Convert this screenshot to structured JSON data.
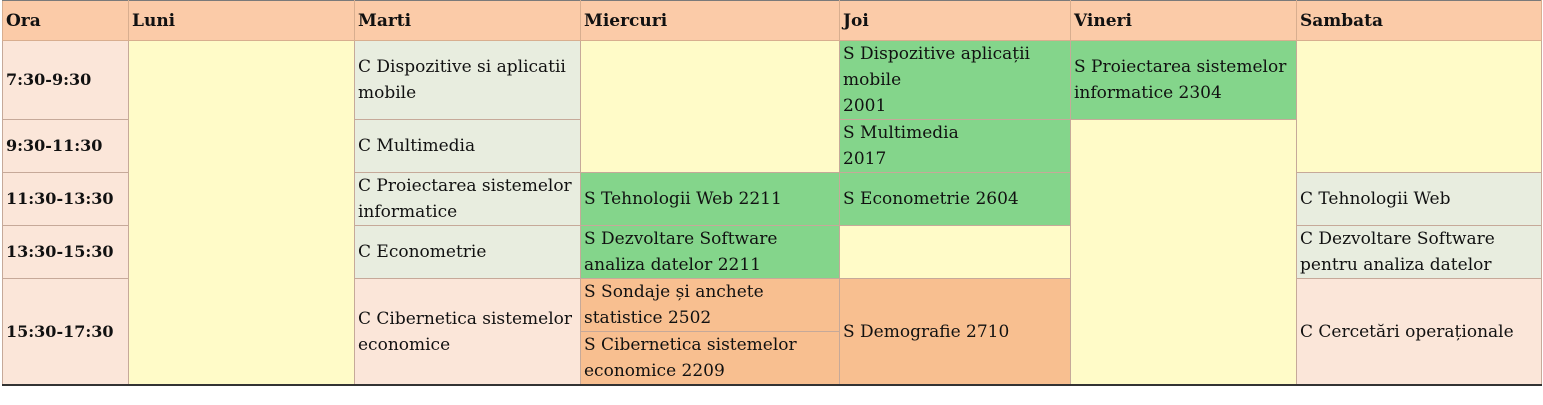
{
  "headers": [
    "Ora",
    "Luni",
    "Marti",
    "Miercuri",
    "Joi",
    "Vineri",
    "Sambata"
  ],
  "times": [
    "7:30-9:30",
    "9:30-11:30",
    "11:30-13:30",
    "13:30-15:30",
    "15:30-17:30"
  ],
  "cells": {
    "marti_1": "C Dispozitive si aplicatii mobile",
    "marti_2": "C Multimedia",
    "marti_3": "C Proiectarea sistemelor informatice",
    "marti_4": "C Econometrie",
    "marti_5": "C Cibernetica sistemelor economice",
    "miercuri_3": "S Tehnologii Web 2211",
    "miercuri_4": "S Dezvoltare Software analiza datelor 2211",
    "miercuri_5a": "S Sondaje și anchete statistice 2502",
    "miercuri_5b": "S Cibernetica sistemelor economice 2209",
    "joi_1_line1": "S Dispozitive aplicații mobile",
    "joi_1_line2": "2001",
    "joi_2_line1": "S Multimedia",
    "joi_2_line2": "2017",
    "joi_3": "S Econometrie 2604",
    "joi_5": "S Demografie 2710",
    "vineri_1": "S Proiectarea sistemelor informatice 2304",
    "sambata_3": "C Tehnologii Web",
    "sambata_4": "C Dezvoltare Software pentru analiza datelor",
    "sambata_5": "C Cercetări operaționale"
  },
  "colors": {
    "header": "#fbcba8",
    "time_column": "#fbe6d9",
    "empty": "#fffbc8",
    "course": "#e8eddf",
    "seminar_green": "#84d58b",
    "seminar_orange": "#f8bf90"
  }
}
